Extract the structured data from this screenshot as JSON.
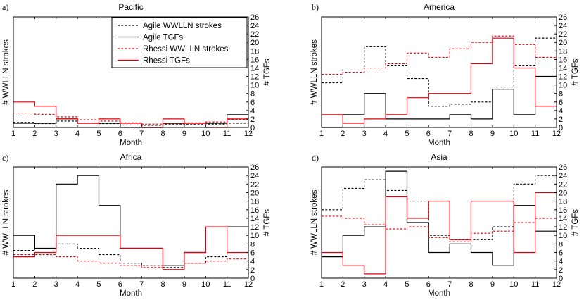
{
  "figure": {
    "xlabel": "Month",
    "ylabel_left": "# WWLLN strokes",
    "ylabel_right": "# TGFs",
    "legend": [
      {
        "label": "Agile WWLLN strokes",
        "color": "#000000",
        "dashed": true
      },
      {
        "label": "Agile TGFs",
        "color": "#000000",
        "dashed": false
      },
      {
        "label": "Rhessi WWLLN strokes",
        "color": "#e0000b",
        "dashed": true
      },
      {
        "label": "Rhessi TGFs",
        "color": "#e0000b",
        "dashed": false
      }
    ]
  },
  "chart_data": [
    {
      "type": "line",
      "step": true,
      "panel_label": "a)",
      "title": "Pacific",
      "xlabel": "Month",
      "ylabel": "# WWLLN strokes",
      "y2label": "# TGFs",
      "xlim": [
        1,
        12
      ],
      "ylim_right": [
        0,
        26
      ],
      "x_ticks": [
        1,
        2,
        3,
        4,
        5,
        6,
        7,
        8,
        9,
        10,
        11,
        12
      ],
      "y2_ticks": [
        0,
        2,
        4,
        6,
        8,
        10,
        12,
        14,
        16,
        18,
        20,
        22,
        24,
        26
      ],
      "legend": true,
      "series": [
        {
          "name": "Agile WWLLN strokes",
          "axis": "right",
          "values": [
            1.2,
            0.9,
            1.5,
            1.0,
            0.9,
            0.6,
            0.5,
            0.8,
            0.7,
            0.8,
            1.0
          ]
        },
        {
          "name": "Agile TGFs",
          "axis": "right",
          "values": [
            1,
            1,
            2,
            1,
            1,
            0,
            0,
            1,
            1,
            1,
            3
          ]
        },
        {
          "name": "Rhessi WWLLN strokes",
          "axis": "right",
          "values": [
            3.4,
            3.1,
            2.5,
            1.8,
            1.5,
            1.1,
            0.8,
            0.9,
            1.1,
            1.3,
            1.9
          ]
        },
        {
          "name": "Rhessi TGFs",
          "axis": "right",
          "values": [
            6,
            5,
            2,
            1,
            2,
            1,
            0,
            2,
            1,
            0,
            2
          ]
        }
      ]
    },
    {
      "type": "line",
      "step": true,
      "panel_label": "b)",
      "title": "America",
      "xlabel": "Month",
      "ylabel": "# WWLLN strokes",
      "y2label": "# TGFs",
      "xlim": [
        1,
        12
      ],
      "ylim_right": [
        0,
        26
      ],
      "x_ticks": [
        1,
        2,
        3,
        4,
        5,
        6,
        7,
        8,
        9,
        10,
        11,
        12
      ],
      "y2_ticks": [
        0,
        2,
        4,
        6,
        8,
        10,
        12,
        14,
        16,
        18,
        20,
        22,
        24,
        26
      ],
      "series": [
        {
          "name": "Agile WWLLN strokes",
          "axis": "right",
          "values": [
            10.5,
            14.0,
            19.0,
            14.5,
            11.5,
            5.0,
            5.5,
            6.0,
            9.5,
            14.5,
            21.0
          ]
        },
        {
          "name": "Agile TGFs",
          "axis": "right",
          "values": [
            0,
            3,
            8,
            2,
            2,
            2,
            3,
            2,
            9,
            3,
            12
          ]
        },
        {
          "name": "Rhessi WWLLN strokes",
          "axis": "right",
          "values": [
            12.5,
            13.0,
            14.0,
            15.0,
            17.5,
            16.5,
            18.5,
            20.0,
            21.5,
            19.5,
            16.5
          ]
        },
        {
          "name": "Rhessi TGFs",
          "axis": "right",
          "values": [
            3,
            1,
            2,
            3,
            7,
            8,
            8,
            15,
            21,
            14,
            5
          ]
        }
      ]
    },
    {
      "type": "line",
      "step": true,
      "panel_label": "c)",
      "title": "Africa",
      "xlabel": "Month",
      "ylabel": "# WWLLN strokes",
      "y2label": "# TGFs",
      "xlim": [
        1,
        12
      ],
      "ylim_right": [
        0,
        26
      ],
      "x_ticks": [
        1,
        2,
        3,
        4,
        5,
        6,
        7,
        8,
        9,
        10,
        11,
        12
      ],
      "y2_ticks": [
        0,
        2,
        4,
        6,
        8,
        10,
        12,
        14,
        16,
        18,
        20,
        22,
        24,
        26
      ],
      "series": [
        {
          "name": "Agile WWLLN strokes",
          "axis": "right",
          "values": [
            6.5,
            7.0,
            8.0,
            7.0,
            5.5,
            3.5,
            3.0,
            2.5,
            3.5,
            5.0,
            6.0
          ]
        },
        {
          "name": "Agile TGFs",
          "axis": "right",
          "values": [
            10,
            7,
            22,
            24,
            17,
            7,
            7,
            3,
            6,
            12,
            12
          ]
        },
        {
          "name": "Rhessi WWLLN strokes",
          "axis": "right",
          "values": [
            5.5,
            5.5,
            5.0,
            4.0,
            3.5,
            3.0,
            2.5,
            2.0,
            3.5,
            4.0,
            4.5
          ]
        },
        {
          "name": "Rhessi TGFs",
          "axis": "right",
          "values": [
            5,
            6,
            10,
            10,
            10,
            7,
            7,
            2,
            6,
            12,
            6
          ]
        }
      ]
    },
    {
      "type": "line",
      "step": true,
      "panel_label": "d)",
      "title": "Asia",
      "xlabel": "Month",
      "ylabel": "# WWLLN strokes",
      "y2label": "# TGFs",
      "xlim": [
        1,
        12
      ],
      "ylim_right": [
        0,
        26
      ],
      "x_ticks": [
        1,
        2,
        3,
        4,
        5,
        6,
        7,
        8,
        9,
        10,
        11,
        12
      ],
      "y2_ticks": [
        0,
        2,
        4,
        6,
        8,
        10,
        12,
        14,
        16,
        18,
        20,
        22,
        24,
        26
      ],
      "series": [
        {
          "name": "Agile WWLLN strokes",
          "axis": "right",
          "values": [
            16.0,
            21.0,
            23.0,
            20.5,
            18.0,
            10.0,
            9.0,
            9.0,
            12.0,
            22.0,
            24.0
          ]
        },
        {
          "name": "Agile TGFs",
          "axis": "right",
          "values": [
            5,
            10,
            12,
            25,
            13,
            6,
            8,
            6,
            3,
            17,
            11
          ]
        },
        {
          "name": "Rhessi WWLLN strokes",
          "axis": "right",
          "values": [
            14.5,
            14.0,
            12.5,
            11.5,
            12.0,
            9.5,
            8.5,
            10.5,
            11.0,
            13.0,
            14.0
          ]
        },
        {
          "name": "Rhessi TGFs",
          "axis": "right",
          "values": [
            6,
            3,
            1,
            19,
            14,
            18,
            9,
            18,
            18,
            6,
            20
          ]
        }
      ]
    }
  ]
}
